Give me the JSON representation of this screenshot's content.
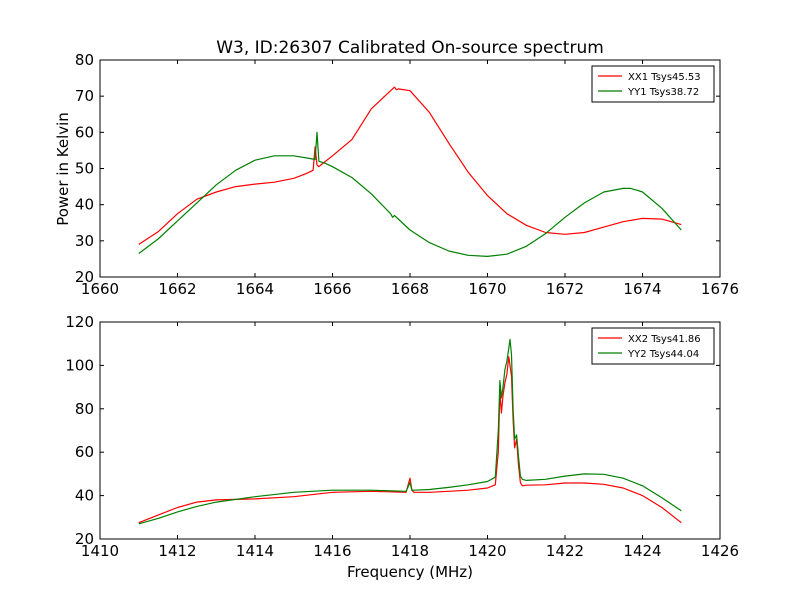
{
  "figure": {
    "title": "W3, ID:26307 Calibrated On-source spectrum",
    "shared_ylabel": "Power in Kelvin",
    "shared_xlabel": "Frequency (MHz)"
  },
  "chart_data": [
    {
      "type": "line",
      "title": "W3, ID:26307 Calibrated On-source spectrum",
      "xlabel": "",
      "ylabel": "Power in Kelvin",
      "xlim": [
        1660,
        1676
      ],
      "ylim": [
        20,
        80
      ],
      "xticks": [
        1660,
        1662,
        1664,
        1666,
        1668,
        1670,
        1672,
        1674,
        1676
      ],
      "yticks": [
        20,
        30,
        40,
        50,
        60,
        70,
        80
      ],
      "grid": false,
      "legend_position": "top-right",
      "series": [
        {
          "name": "XX1 Tsys45.53",
          "color": "#ff0000",
          "x": [
            1661.0,
            1661.5,
            1662.0,
            1662.5,
            1663.0,
            1663.5,
            1664.0,
            1664.5,
            1665.0,
            1665.3,
            1665.5,
            1665.55,
            1665.6,
            1665.65,
            1665.7,
            1666.0,
            1666.5,
            1667.0,
            1667.5,
            1667.6,
            1667.65,
            1667.7,
            1668.0,
            1668.5,
            1669.0,
            1669.5,
            1670.0,
            1670.5,
            1671.0,
            1671.5,
            1672.0,
            1672.5,
            1673.0,
            1673.5,
            1674.0,
            1674.5,
            1675.0
          ],
          "y": [
            29.0,
            32.5,
            37.5,
            41.5,
            43.5,
            45.0,
            45.7,
            46.2,
            47.3,
            48.5,
            49.5,
            56.0,
            51.0,
            50.5,
            51.0,
            53.5,
            58.0,
            66.5,
            71.5,
            72.5,
            71.8,
            72.0,
            71.5,
            65.5,
            57.0,
            49.0,
            42.5,
            37.5,
            34.3,
            32.3,
            31.8,
            32.3,
            33.8,
            35.3,
            36.2,
            36.0,
            34.5
          ]
        },
        {
          "name": "YY1 Tsys38.72",
          "color": "#008000",
          "x": [
            1661.0,
            1661.5,
            1662.0,
            1662.5,
            1663.0,
            1663.5,
            1664.0,
            1664.5,
            1665.0,
            1665.4,
            1665.55,
            1665.6,
            1665.65,
            1665.8,
            1666.0,
            1666.5,
            1667.0,
            1667.5,
            1667.55,
            1667.6,
            1668.0,
            1668.5,
            1669.0,
            1669.5,
            1670.0,
            1670.5,
            1671.0,
            1671.5,
            1672.0,
            1672.5,
            1673.0,
            1673.5,
            1673.7,
            1674.0,
            1674.5,
            1675.0
          ],
          "y": [
            26.5,
            30.5,
            35.5,
            40.5,
            45.5,
            49.5,
            52.3,
            53.5,
            53.5,
            52.8,
            52.5,
            60.0,
            52.0,
            51.5,
            50.5,
            47.5,
            43.0,
            37.5,
            36.5,
            37.0,
            33.0,
            29.5,
            27.2,
            26.0,
            25.7,
            26.3,
            28.5,
            32.0,
            36.5,
            40.5,
            43.5,
            44.5,
            44.5,
            43.5,
            39.0,
            33.0
          ]
        }
      ]
    },
    {
      "type": "line",
      "title": "",
      "xlabel": "Frequency (MHz)",
      "ylabel": "",
      "xlim": [
        1410,
        1426
      ],
      "ylim": [
        20,
        120
      ],
      "xticks": [
        1410,
        1412,
        1414,
        1416,
        1418,
        1420,
        1422,
        1424,
        1426
      ],
      "yticks": [
        20,
        40,
        60,
        80,
        100,
        120
      ],
      "grid": false,
      "legend_position": "top-right",
      "series": [
        {
          "name": "XX2 Tsys41.86",
          "color": "#ff0000",
          "x": [
            1411.0,
            1411.5,
            1412.0,
            1412.5,
            1413.0,
            1414.0,
            1415.0,
            1416.0,
            1417.0,
            1417.9,
            1418.0,
            1418.05,
            1418.1,
            1418.5,
            1419.0,
            1419.5,
            1420.0,
            1420.2,
            1420.28,
            1420.32,
            1420.36,
            1420.4,
            1420.45,
            1420.5,
            1420.55,
            1420.58,
            1420.62,
            1420.66,
            1420.7,
            1420.75,
            1420.8,
            1420.85,
            1420.9,
            1421.0,
            1421.5,
            1422.0,
            1422.5,
            1423.0,
            1423.5,
            1424.0,
            1424.5,
            1425.0
          ],
          "y": [
            27.5,
            31.0,
            34.5,
            37.0,
            38.0,
            38.5,
            39.5,
            41.5,
            42.0,
            41.5,
            48.0,
            42.5,
            41.5,
            41.5,
            42.0,
            42.5,
            43.5,
            45.0,
            60.0,
            88.0,
            78.0,
            86.0,
            92.0,
            96.0,
            104.0,
            100.0,
            95.0,
            75.0,
            62.0,
            66.0,
            54.0,
            46.0,
            44.5,
            44.8,
            45.0,
            45.8,
            45.8,
            45.2,
            43.5,
            40.0,
            34.5,
            27.5
          ]
        },
        {
          "name": "YY2 Tsys44.04",
          "color": "#008000",
          "x": [
            1411.0,
            1411.5,
            1412.0,
            1412.5,
            1413.0,
            1414.0,
            1415.0,
            1416.0,
            1417.0,
            1417.9,
            1418.0,
            1418.05,
            1418.1,
            1418.5,
            1419.0,
            1419.5,
            1420.0,
            1420.2,
            1420.28,
            1420.32,
            1420.36,
            1420.4,
            1420.45,
            1420.5,
            1420.55,
            1420.58,
            1420.62,
            1420.66,
            1420.7,
            1420.75,
            1420.8,
            1420.85,
            1420.9,
            1421.0,
            1421.5,
            1422.0,
            1422.5,
            1423.0,
            1423.5,
            1424.0,
            1424.5,
            1425.0
          ],
          "y": [
            27.0,
            29.5,
            32.5,
            35.0,
            37.0,
            39.5,
            41.5,
            42.5,
            42.5,
            42.0,
            46.0,
            42.5,
            42.5,
            42.8,
            43.8,
            45.0,
            46.5,
            48.5,
            70.0,
            93.0,
            85.0,
            90.0,
            98.0,
            102.0,
            108.0,
            112.0,
            105.0,
            80.0,
            66.0,
            68.0,
            58.0,
            49.0,
            47.5,
            47.0,
            47.5,
            49.0,
            50.0,
            49.8,
            48.0,
            44.5,
            39.0,
            33.0
          ]
        }
      ]
    }
  ]
}
